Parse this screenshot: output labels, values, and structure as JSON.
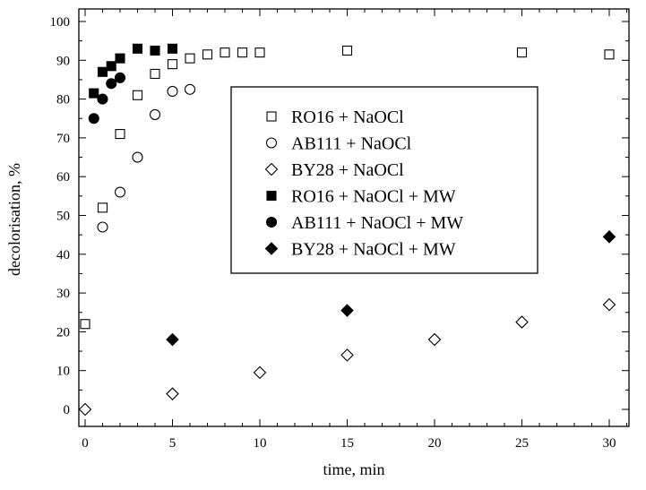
{
  "chart_data": {
    "type": "scatter",
    "xlabel": "time, min",
    "ylabel": "decolorisation, %",
    "xlim": [
      0,
      33
    ],
    "ylim": [
      0,
      100
    ],
    "xticks": [
      0,
      5,
      10,
      15,
      20,
      25,
      30
    ],
    "yticks": [
      0,
      10,
      20,
      30,
      40,
      50,
      60,
      70,
      80,
      90,
      100
    ],
    "legend_position": "upper-right",
    "series": [
      {
        "name": "RO16 + NaOCl",
        "marker": "square-open",
        "x": [
          0,
          1,
          2,
          3,
          4,
          5,
          6,
          7,
          8,
          9,
          10,
          15,
          25,
          30
        ],
        "y": [
          22,
          52,
          71,
          81,
          86.5,
          89,
          90.5,
          91.5,
          92,
          92,
          92,
          92.5,
          92,
          91.5
        ]
      },
      {
        "name": "AB111 + NaOCl",
        "marker": "circle-open",
        "x": [
          1,
          2,
          3,
          4,
          5,
          6
        ],
        "y": [
          47,
          56,
          65,
          76,
          82,
          82.5
        ]
      },
      {
        "name": "BY28 + NaOCl",
        "marker": "diamond-open",
        "x": [
          0,
          5,
          10,
          15,
          20,
          25,
          30
        ],
        "y": [
          0,
          4,
          9.5,
          14,
          18,
          22.5,
          27
        ]
      },
      {
        "name": "RO16 + NaOCl + MW",
        "marker": "square-filled",
        "x": [
          0.5,
          1,
          1.5,
          2,
          3,
          4,
          5
        ],
        "y": [
          81.5,
          87,
          88.5,
          90.5,
          93,
          92.5,
          93
        ]
      },
      {
        "name": "AB111 + NaOCl + MW",
        "marker": "circle-filled",
        "x": [
          0.5,
          1,
          1.5,
          2
        ],
        "y": [
          75,
          80,
          84,
          85.5
        ]
      },
      {
        "name": "BY28 + NaOCl + MW",
        "marker": "diamond-filled",
        "x": [
          5,
          15,
          30
        ],
        "y": [
          18,
          25.5,
          44.5
        ]
      }
    ]
  }
}
